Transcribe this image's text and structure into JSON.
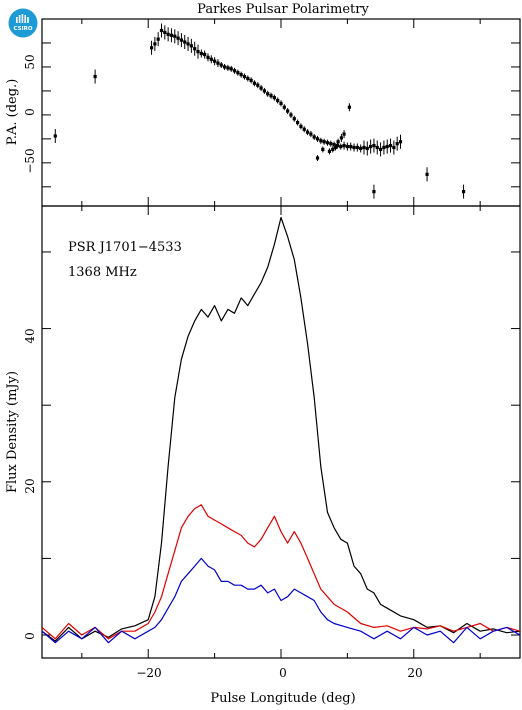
{
  "title": "Parkes Pulsar Polarimetry",
  "logo": {
    "text": "CSIRO",
    "color": "#1e9ad6"
  },
  "chart_data": [
    {
      "type": "scatter",
      "panel": "top",
      "ylabel": "P.A. (deg.)",
      "xlim": [
        -36,
        36
      ],
      "ylim": [
        -95,
        100
      ],
      "yticks": [
        -50,
        0,
        50
      ],
      "ytick_labels": [
        "−50",
        "0",
        "50"
      ],
      "errorbars": true,
      "points": [
        [
          -34,
          -22
        ],
        [
          -28,
          40
        ],
        [
          -19.5,
          70
        ],
        [
          -19,
          74
        ],
        [
          -18.5,
          79
        ],
        [
          -18,
          88
        ],
        [
          -17.5,
          86
        ],
        [
          -17,
          84
        ],
        [
          -16.5,
          83
        ],
        [
          -16,
          82
        ],
        [
          -15.5,
          80
        ],
        [
          -15,
          78
        ],
        [
          -14.5,
          76
        ],
        [
          -14,
          74
        ],
        [
          -13.5,
          72
        ],
        [
          -13,
          69
        ],
        [
          -12.5,
          66
        ],
        [
          -12,
          64
        ],
        [
          -11.5,
          63
        ],
        [
          -11,
          60
        ],
        [
          -10.5,
          58
        ],
        [
          -10,
          56
        ],
        [
          -9.5,
          54
        ],
        [
          -9,
          52
        ],
        [
          -8.5,
          50
        ],
        [
          -8,
          49
        ],
        [
          -7.5,
          48
        ],
        [
          -7,
          46
        ],
        [
          -6.5,
          44
        ],
        [
          -6,
          42
        ],
        [
          -5.5,
          40
        ],
        [
          -5,
          38
        ],
        [
          -4.5,
          36
        ],
        [
          -4,
          33
        ],
        [
          -3.5,
          31
        ],
        [
          -3,
          28
        ],
        [
          -2.5,
          25
        ],
        [
          -2,
          22
        ],
        [
          -1.5,
          20
        ],
        [
          -1,
          18
        ],
        [
          -0.5,
          15
        ],
        [
          0,
          12
        ],
        [
          0.5,
          8
        ],
        [
          1,
          4
        ],
        [
          1.5,
          0
        ],
        [
          2,
          -4
        ],
        [
          2.5,
          -8
        ],
        [
          3,
          -12
        ],
        [
          3.5,
          -15
        ],
        [
          4,
          -18
        ],
        [
          4.5,
          -20
        ],
        [
          5,
          -23
        ],
        [
          5.5,
          -25
        ],
        [
          6,
          -27
        ],
        [
          6.5,
          -28
        ],
        [
          7,
          -29
        ],
        [
          7.5,
          -30
        ],
        [
          8,
          -31
        ],
        [
          8.5,
          -32
        ],
        [
          9,
          -33
        ],
        [
          9.5,
          -32
        ],
        [
          10,
          -33
        ],
        [
          10.5,
          -33
        ],
        [
          11,
          -34
        ],
        [
          11.5,
          -34
        ],
        [
          12,
          -35
        ],
        [
          12.5,
          -34
        ],
        [
          13,
          -35
        ],
        [
          13.5,
          -33
        ],
        [
          14,
          -32
        ],
        [
          14.5,
          -34
        ],
        [
          15,
          -36
        ],
        [
          15.5,
          -34
        ],
        [
          16,
          -33
        ],
        [
          16.5,
          -32
        ],
        [
          17,
          -34
        ],
        [
          17.5,
          -30
        ],
        [
          18,
          -28
        ],
        [
          5.5,
          -45
        ],
        [
          6.3,
          -36
        ],
        [
          7.3,
          -38
        ],
        [
          7.8,
          -36
        ],
        [
          8.2,
          -34
        ],
        [
          8.6,
          -28
        ],
        [
          9.1,
          -24
        ],
        [
          9.5,
          -20
        ],
        [
          10.3,
          8
        ],
        [
          14,
          -80
        ],
        [
          22,
          -62
        ],
        [
          27.5,
          -80
        ]
      ]
    },
    {
      "type": "line",
      "panel": "bottom",
      "xlabel": "Pulse Longitude (deg)",
      "ylabel": "Flux Density (mJy)",
      "xlim": [
        -36,
        36
      ],
      "ylim": [
        -3,
        56
      ],
      "xticks": [
        -20,
        0,
        20
      ],
      "xtick_labels": [
        "−20",
        "0",
        "20"
      ],
      "yticks": [
        0,
        20,
        40
      ],
      "ytick_labels": [
        "0",
        "20",
        "40"
      ],
      "annotations": [
        "PSR J1701−4533",
        "1368 MHz"
      ],
      "series": [
        {
          "color": "#000000",
          "x": [
            -36,
            -34,
            -32,
            -30,
            -28,
            -26,
            -24,
            -22,
            -20,
            -19,
            -18,
            -17,
            -16,
            -15,
            -14,
            -13,
            -12,
            -11,
            -10,
            -9,
            -8,
            -7,
            -6,
            -5,
            -4,
            -3,
            -2,
            -1,
            0,
            1,
            2,
            3,
            4,
            5,
            6,
            7,
            8,
            9,
            10,
            11,
            12,
            13,
            14,
            15,
            16,
            18,
            20,
            22,
            24,
            26,
            28,
            30,
            32,
            34,
            36
          ],
          "y": [
            0.5,
            -0.8,
            1.0,
            -0.5,
            0.5,
            -0.3,
            0.8,
            1.2,
            2.0,
            5.0,
            12.0,
            22.0,
            31.0,
            36.0,
            39.0,
            41.0,
            42.5,
            41.5,
            43.0,
            41.0,
            42.5,
            42.0,
            44.0,
            43.0,
            44.5,
            46.0,
            48.0,
            51.0,
            54.5,
            52.0,
            49.0,
            44.0,
            38.0,
            31.0,
            22.0,
            16.0,
            14.0,
            12.5,
            12.0,
            9.0,
            8.0,
            6.0,
            5.5,
            4.0,
            3.5,
            2.5,
            2.0,
            1.0,
            1.2,
            0.3,
            1.5,
            0.5,
            0.8,
            0.3,
            0.5
          ]
        },
        {
          "color": "#e00000",
          "x": [
            -36,
            -34,
            -32,
            -30,
            -28,
            -26,
            -24,
            -22,
            -20,
            -19,
            -18,
            -17,
            -16,
            -15,
            -14,
            -13,
            -12,
            -11,
            -10,
            -9,
            -8,
            -7,
            -6,
            -5,
            -4,
            -3,
            -2,
            -1,
            0,
            1,
            2,
            3,
            4,
            5,
            6,
            7,
            8,
            10,
            12,
            14,
            16,
            18,
            20,
            22,
            24,
            26,
            28,
            30,
            32,
            34,
            36
          ],
          "y": [
            1.0,
            -0.5,
            1.5,
            0.0,
            1.0,
            -0.5,
            0.5,
            0.5,
            1.5,
            3.0,
            5.0,
            8.0,
            11.0,
            14.0,
            15.5,
            16.5,
            17.0,
            15.5,
            15.0,
            14.5,
            14.0,
            13.5,
            13.0,
            12.0,
            11.5,
            12.5,
            14.0,
            15.5,
            13.5,
            12.0,
            13.5,
            12.0,
            10.0,
            8.0,
            6.0,
            5.0,
            4.0,
            3.0,
            1.5,
            1.0,
            1.2,
            0.5,
            1.0,
            0.8,
            1.2,
            0.5,
            1.0,
            1.5,
            0.5,
            1.0,
            0.5
          ]
        },
        {
          "color": "#0000d0",
          "x": [
            -36,
            -34,
            -32,
            -30,
            -28,
            -26,
            -24,
            -22,
            -20,
            -19,
            -18,
            -17,
            -16,
            -15,
            -14,
            -13,
            -12,
            -11,
            -10,
            -9,
            -8,
            -7,
            -6,
            -5,
            -4,
            -3,
            -2,
            -1,
            0,
            1,
            2,
            3,
            4,
            5,
            6,
            7,
            8,
            10,
            12,
            14,
            16,
            18,
            20,
            22,
            24,
            26,
            28,
            30,
            32,
            34,
            36
          ],
          "y": [
            0.5,
            -1.0,
            0.5,
            -0.5,
            1.0,
            -1.0,
            0.5,
            -0.5,
            0.5,
            1.0,
            2.0,
            3.5,
            5.0,
            7.0,
            8.0,
            9.0,
            10.0,
            9.0,
            8.5,
            7.0,
            7.0,
            6.5,
            6.5,
            6.0,
            6.0,
            6.5,
            5.5,
            6.0,
            4.5,
            5.0,
            6.0,
            5.5,
            5.0,
            4.5,
            3.0,
            2.0,
            1.5,
            1.0,
            0.5,
            -0.5,
            0.5,
            -0.5,
            1.0,
            0.0,
            0.5,
            -1.0,
            1.0,
            -0.5,
            0.5,
            1.0,
            0.0
          ]
        }
      ]
    }
  ]
}
